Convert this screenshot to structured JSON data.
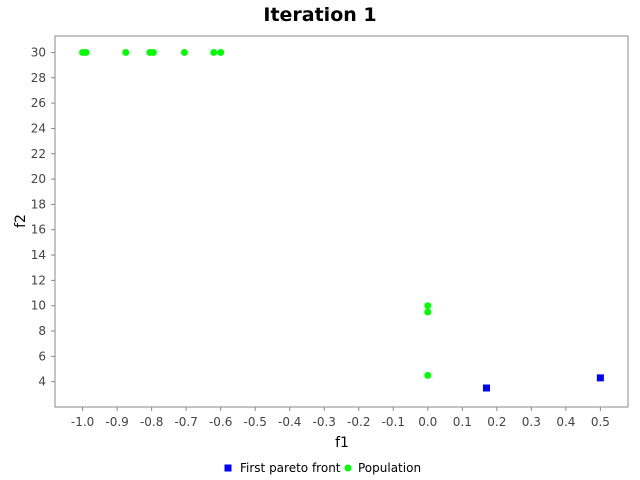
{
  "chart_data": {
    "type": "scatter",
    "title": "Iteration 1",
    "xlabel": "f1",
    "ylabel": "f2",
    "xlim": [
      -1.08,
      0.58
    ],
    "ylim": [
      2.0,
      31.3
    ],
    "xticks": [
      "-1.0",
      "-0.9",
      "-0.8",
      "-0.7",
      "-0.6",
      "-0.5",
      "-0.4",
      "-0.3",
      "-0.2",
      "-0.1",
      "0.0",
      "0.1",
      "0.2",
      "0.3",
      "0.4",
      "0.5"
    ],
    "yticks": [
      "4",
      "6",
      "8",
      "10",
      "12",
      "14",
      "16",
      "18",
      "20",
      "22",
      "24",
      "26",
      "28",
      "30"
    ],
    "grid": false,
    "legend_position": "bottom-center",
    "series": [
      {
        "name": "First pareto front",
        "marker": "square",
        "color": "#0000ff",
        "x": [
          0.17,
          0.5
        ],
        "y": [
          3.5,
          4.3
        ]
      },
      {
        "name": "Population",
        "marker": "circle",
        "color": "#00ff00",
        "x": [
          -1.0,
          -0.99,
          -0.875,
          -0.805,
          -0.795,
          -0.705,
          -0.62,
          -0.6,
          0.0,
          0.0,
          0.0
        ],
        "y": [
          30,
          30,
          30,
          30,
          30,
          30,
          30,
          30,
          10,
          9.5,
          4.5
        ]
      }
    ]
  }
}
